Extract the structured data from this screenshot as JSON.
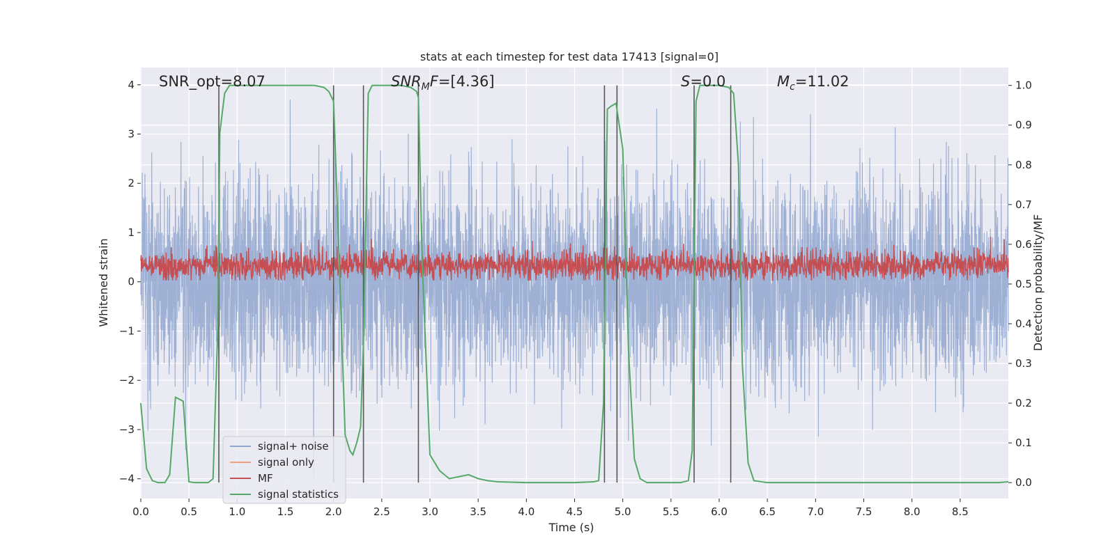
{
  "chart_data": {
    "type": "line",
    "title": "stats at each timestep for test data 17413 [signal=0]",
    "xlabel": "Time (s)",
    "ylabel_left": "Whitened strain",
    "ylabel_right": "Detection probability/MF",
    "xlim": [
      0.0,
      9.0
    ],
    "ylim_left": [
      -4.4,
      4.35
    ],
    "ylim_right": [
      -0.04,
      1.045
    ],
    "x_ticks": [
      0.0,
      0.5,
      1.0,
      1.5,
      2.0,
      2.5,
      3.0,
      3.5,
      4.0,
      4.5,
      5.0,
      5.5,
      6.0,
      6.5,
      7.0,
      7.5,
      8.0,
      8.5
    ],
    "x_tick_labels": [
      "0.0",
      "0.5",
      "1.0",
      "1.5",
      "2.0",
      "2.5",
      "3.0",
      "3.5",
      "4.0",
      "4.5",
      "5.0",
      "5.5",
      "6.0",
      "6.5",
      "7.0",
      "7.5",
      "8.0",
      "8.5"
    ],
    "y_left_ticks": [
      4,
      3,
      2,
      1,
      0,
      -1,
      -2,
      -3,
      -4
    ],
    "y_left_tick_labels": [
      "4",
      "3",
      "2",
      "1",
      "0",
      "−1",
      "−2",
      "−3",
      "−4"
    ],
    "y_right_ticks": [
      1.0,
      0.9,
      0.8,
      0.7,
      0.6,
      0.5,
      0.4,
      0.3,
      0.2,
      0.1,
      0.0
    ],
    "y_right_tick_labels": [
      "1.0",
      "0.9",
      "0.8",
      "0.7",
      "0.6",
      "0.5",
      "0.4",
      "0.3",
      "0.2",
      "0.1",
      "0.0"
    ],
    "annotations": [
      {
        "text": "SNR_opt=8.07"
      },
      {
        "text": "SNR_MF=[4.36]"
      },
      {
        "text": "S=0.0"
      },
      {
        "text": "M_c=11.02"
      }
    ],
    "legend": [
      {
        "label": "signal+ noise",
        "color": "#91a6cf"
      },
      {
        "label": "signal only",
        "color": "#ef9f80"
      },
      {
        "label": "MF",
        "color": "#c44e52"
      },
      {
        "label": "signal statistics",
        "color": "#55a868"
      }
    ],
    "legend_placement": "lower-left",
    "detection_boundaries_x": [
      0.81,
      2.0,
      2.31,
      2.88,
      4.81,
      4.94,
      5.74,
      6.12
    ],
    "series": [
      {
        "name": "signal+ noise",
        "axis": "left",
        "color": "#91a6cf",
        "description": "whitened strain noise, approximately Gaussian with sigma 1.0, peaks roughly between -4.0 and 3.7",
        "x_range": [
          0.0,
          9.0
        ],
        "amplitude_range": [
          -4.0,
          3.7
        ]
      },
      {
        "name": "MF",
        "axis": "left",
        "color": "#c44e52",
        "description": "matched-filter output, fluctuating around 0.35 with range 0.0 to 1.0",
        "x_range": [
          0.0,
          9.0
        ],
        "amplitude_range": [
          0.0,
          1.0
        ]
      },
      {
        "name": "signal statistics",
        "axis": "right",
        "color": "#55a868",
        "x": [
          0.0,
          0.06,
          0.12,
          0.18,
          0.25,
          0.3,
          0.36,
          0.44,
          0.5,
          0.56,
          0.62,
          0.7,
          0.75,
          0.8,
          0.82,
          0.87,
          0.92,
          1.0,
          1.5,
          1.8,
          1.9,
          1.95,
          2.0,
          2.06,
          2.12,
          2.17,
          2.2,
          2.24,
          2.28,
          2.31,
          2.36,
          2.4,
          2.5,
          2.7,
          2.8,
          2.86,
          2.88,
          2.92,
          3.0,
          3.1,
          3.2,
          3.3,
          3.4,
          3.5,
          3.6,
          3.7,
          4.0,
          4.5,
          4.7,
          4.75,
          4.8,
          4.84,
          4.88,
          4.93,
          5.0,
          5.06,
          5.12,
          5.18,
          5.25,
          5.4,
          5.6,
          5.68,
          5.72,
          5.76,
          5.8,
          5.84,
          6.0,
          6.1,
          6.15,
          6.2,
          6.24,
          6.3,
          6.36,
          6.5,
          7.0,
          8.0,
          8.9,
          9.0
        ],
        "y": [
          0.2,
          0.035,
          0.005,
          0.0,
          0.0,
          0.02,
          0.215,
          0.205,
          0.002,
          0.0,
          0.0,
          0.0,
          0.01,
          0.4,
          0.88,
          0.98,
          1.0,
          1.0,
          1.0,
          1.0,
          0.995,
          0.985,
          0.96,
          0.55,
          0.12,
          0.08,
          0.07,
          0.1,
          0.14,
          0.35,
          0.98,
          1.0,
          1.0,
          1.0,
          0.995,
          0.985,
          0.97,
          0.55,
          0.07,
          0.03,
          0.01,
          0.015,
          0.02,
          0.01,
          0.005,
          0.002,
          0.0,
          0.0,
          0.002,
          0.005,
          0.2,
          0.94,
          0.948,
          0.955,
          0.84,
          0.33,
          0.06,
          0.01,
          0.0,
          0.0,
          0.0,
          0.005,
          0.08,
          0.96,
          1.0,
          1.0,
          1.0,
          0.995,
          0.98,
          0.8,
          0.3,
          0.05,
          0.005,
          0.0,
          0.0,
          0.0,
          0.0,
          0.002
        ]
      }
    ]
  }
}
